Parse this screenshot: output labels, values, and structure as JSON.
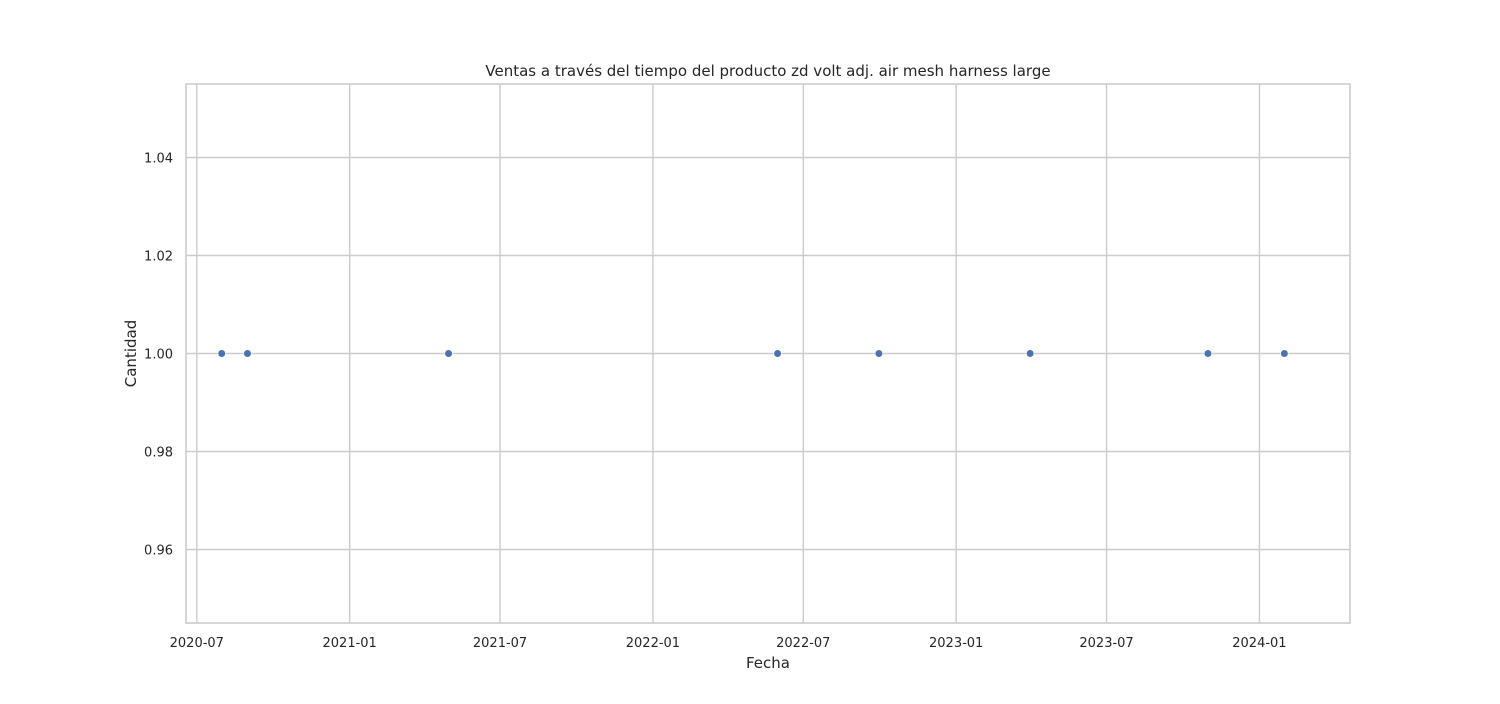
{
  "chart_data": {
    "type": "scatter",
    "title": "Ventas a través del tiempo del producto zd volt adj. air mesh harness large",
    "xlabel": "Fecha",
    "ylabel": "Cantidad",
    "x_scale": "date",
    "xlim": [
      "2020-06-18",
      "2024-04-19"
    ],
    "ylim": [
      0.945,
      1.055
    ],
    "x_ticks": [
      "2020-07-01",
      "2021-01-01",
      "2021-07-01",
      "2022-01-01",
      "2022-07-01",
      "2023-01-01",
      "2023-07-01",
      "2024-01-01"
    ],
    "x_tick_labels": [
      "2020-07",
      "2021-01",
      "2021-07",
      "2022-01",
      "2022-07",
      "2023-01",
      "2023-07",
      "2024-01"
    ],
    "y_ticks": [
      0.96,
      0.98,
      1.0,
      1.02,
      1.04
    ],
    "y_tick_labels": [
      "0.96",
      "0.98",
      "1.00",
      "1.02",
      "1.04"
    ],
    "grid": true,
    "series": [
      {
        "color": "#4c72b0",
        "points": [
          {
            "x": "2020-07-31",
            "y": 1.0
          },
          {
            "x": "2020-08-31",
            "y": 1.0
          },
          {
            "x": "2021-04-30",
            "y": 1.0
          },
          {
            "x": "2022-05-31",
            "y": 1.0
          },
          {
            "x": "2022-09-30",
            "y": 1.0
          },
          {
            "x": "2023-03-31",
            "y": 1.0
          },
          {
            "x": "2023-10-31",
            "y": 1.0
          },
          {
            "x": "2024-01-31",
            "y": 1.0
          }
        ]
      }
    ]
  }
}
